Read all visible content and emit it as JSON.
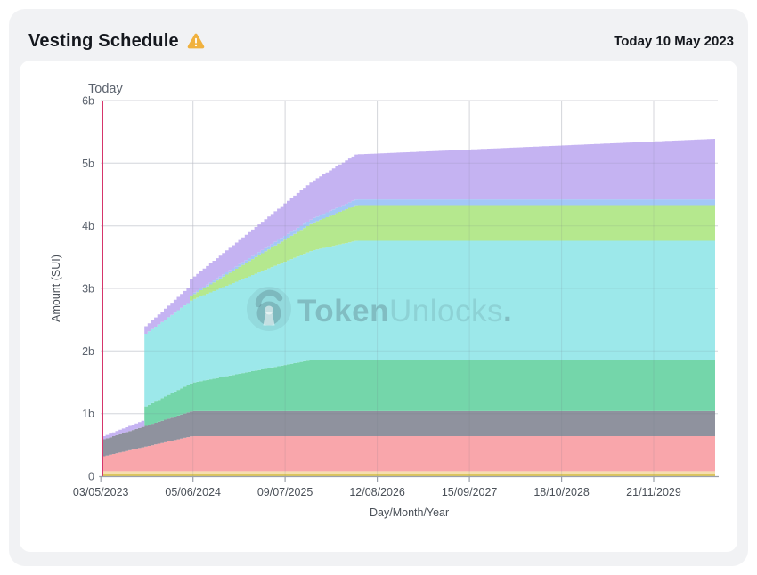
{
  "header": {
    "title": "Vesting Schedule",
    "warning_icon": "warning-triangle",
    "today_label": "Today 10 May 2023"
  },
  "watermark": {
    "brand_bold": "Token",
    "brand_light": "Unlocks",
    "suffix": "."
  },
  "chart_data": {
    "type": "area",
    "stacked": true,
    "step": true,
    "step_days": 14,
    "title": "Vesting Schedule",
    "xlabel": "Day/Month/Year",
    "ylabel": "Amount (SUI)",
    "unit": "billions of SUI",
    "grid": true,
    "legend": "none",
    "today_annotation": "Today",
    "today_day": 7,
    "x_domain_days": [
      7,
      2660
    ],
    "x_tick_days": [
      0,
      399,
      798,
      1197,
      1596,
      1995,
      2394
    ],
    "x_tick_labels": [
      "03/05/2023",
      "05/06/2024",
      "09/07/2025",
      "12/08/2026",
      "15/09/2027",
      "18/10/2028",
      "21/11/2029"
    ],
    "ylim": [
      0,
      6
    ],
    "y_tick_values": [
      0,
      1,
      2,
      3,
      4,
      5,
      6
    ],
    "y_tick_labels": [
      "0",
      "1b",
      "2b",
      "3b",
      "4b",
      "5b",
      "6b"
    ],
    "series": [
      {
        "name": "layer-gold",
        "color": "#dcc65e",
        "keyframes": [
          [
            7,
            0.03
          ],
          [
            2660,
            0.03
          ]
        ]
      },
      {
        "name": "layer-cream",
        "color": "#f6ddb0",
        "keyframes": [
          [
            7,
            0.05
          ],
          [
            2660,
            0.05
          ]
        ]
      },
      {
        "name": "layer-pink",
        "color": "#f9a6ab",
        "keyframes": [
          [
            7,
            0.24
          ],
          [
            390,
            0.56
          ],
          [
            2660,
            0.56
          ]
        ]
      },
      {
        "name": "layer-gray",
        "color": "#8f929e",
        "keyframes": [
          [
            7,
            0.27
          ],
          [
            390,
            0.4
          ],
          [
            2660,
            0.4
          ]
        ]
      },
      {
        "name": "layer-green",
        "color": "#74d6aa",
        "keyframes": [
          [
            7,
            0
          ],
          [
            187,
            0
          ],
          [
            188,
            0.31
          ],
          [
            910,
            0.82
          ],
          [
            2660,
            0.82
          ]
        ]
      },
      {
        "name": "layer-cyan",
        "color": "#9ce8ea",
        "keyframes": [
          [
            7,
            0
          ],
          [
            187,
            0
          ],
          [
            188,
            1.16
          ],
          [
            1100,
            1.9
          ],
          [
            2660,
            1.9
          ]
        ]
      },
      {
        "name": "layer-lime",
        "color": "#b5e88e",
        "keyframes": [
          [
            7,
            0
          ],
          [
            371,
            0
          ],
          [
            372,
            0.06
          ],
          [
            1100,
            0.57
          ],
          [
            2660,
            0.57
          ]
        ]
      },
      {
        "name": "layer-blue",
        "color": "#a3c8f7",
        "keyframes": [
          [
            7,
            0
          ],
          [
            371,
            0
          ],
          [
            372,
            0.02
          ],
          [
            1100,
            0.09
          ],
          [
            2660,
            0.09
          ]
        ]
      },
      {
        "name": "layer-purple",
        "color": "#c5b3f2",
        "keyframes": [
          [
            7,
            0.05
          ],
          [
            187,
            0.1
          ],
          [
            188,
            0.12
          ],
          [
            1100,
            0.72
          ],
          [
            2660,
            0.97
          ]
        ]
      }
    ],
    "colors": {
      "today_line": "#d6356b",
      "grid": "#e6e7eb",
      "axis": "#9ba1aa",
      "axis_text": "#4a5058",
      "tick_text": "#5c636e",
      "warning": "#f0b13e"
    }
  }
}
